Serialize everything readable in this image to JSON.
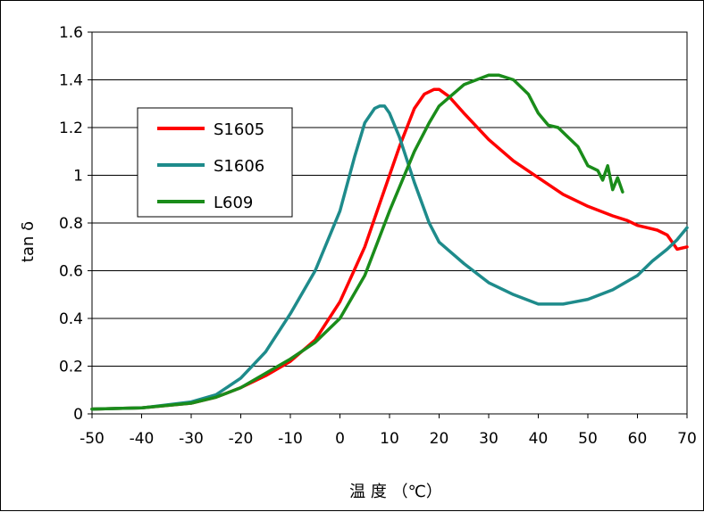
{
  "chart_data": {
    "type": "line",
    "xlabel": "温 度 （℃）",
    "ylabel": "tan δ",
    "xlim": [
      -50,
      70
    ],
    "ylim": [
      0,
      1.6
    ],
    "xticks": [
      "-50",
      "-40",
      "-30",
      "-20",
      "-10",
      "0",
      "10",
      "20",
      "30",
      "40",
      "50",
      "60",
      "70"
    ],
    "yticks": [
      "0",
      "0.2",
      "0.4",
      "0.6",
      "0.8",
      "1",
      "1.2",
      "1.4",
      "1.6"
    ],
    "grid": "horizontal",
    "legend_position": "upper-left",
    "series": [
      {
        "name": "S1605",
        "color": "#ff0000",
        "x": [
          -50,
          -40,
          -30,
          -25,
          -20,
          -15,
          -10,
          -5,
          0,
          5,
          8,
          10,
          12,
          15,
          17,
          19,
          20,
          22,
          25,
          30,
          35,
          40,
          45,
          50,
          55,
          58,
          60,
          62,
          64,
          66,
          68,
          70
        ],
        "y": [
          0.02,
          0.025,
          0.045,
          0.07,
          0.11,
          0.16,
          0.22,
          0.31,
          0.47,
          0.7,
          0.88,
          1.0,
          1.12,
          1.28,
          1.34,
          1.36,
          1.36,
          1.33,
          1.26,
          1.15,
          1.06,
          0.99,
          0.92,
          0.87,
          0.83,
          0.81,
          0.79,
          0.78,
          0.77,
          0.75,
          0.69,
          0.7
        ]
      },
      {
        "name": "S1606",
        "color": "#1e8b8b",
        "x": [
          -50,
          -40,
          -30,
          -25,
          -20,
          -15,
          -10,
          -5,
          0,
          3,
          5,
          7,
          8,
          9,
          10,
          12,
          15,
          18,
          20,
          25,
          30,
          35,
          40,
          45,
          50,
          55,
          60,
          63,
          66,
          68,
          70
        ],
        "y": [
          0.02,
          0.025,
          0.05,
          0.08,
          0.15,
          0.26,
          0.42,
          0.6,
          0.85,
          1.08,
          1.22,
          1.28,
          1.29,
          1.29,
          1.26,
          1.16,
          0.97,
          0.8,
          0.72,
          0.63,
          0.55,
          0.5,
          0.46,
          0.46,
          0.48,
          0.52,
          0.58,
          0.64,
          0.69,
          0.73,
          0.78
        ]
      },
      {
        "name": "L609",
        "color": "#1a8c1a",
        "x": [
          -50,
          -40,
          -30,
          -25,
          -20,
          -15,
          -10,
          -5,
          0,
          5,
          10,
          15,
          18,
          20,
          25,
          30,
          32,
          35,
          38,
          40,
          42,
          44,
          46,
          48,
          50,
          52,
          53,
          54,
          55,
          56,
          57
        ],
        "y": [
          0.02,
          0.025,
          0.045,
          0.07,
          0.11,
          0.17,
          0.23,
          0.3,
          0.4,
          0.58,
          0.85,
          1.1,
          1.22,
          1.29,
          1.38,
          1.42,
          1.42,
          1.4,
          1.34,
          1.26,
          1.21,
          1.2,
          1.16,
          1.12,
          1.04,
          1.02,
          0.98,
          1.04,
          0.94,
          0.99,
          0.93
        ]
      }
    ]
  }
}
